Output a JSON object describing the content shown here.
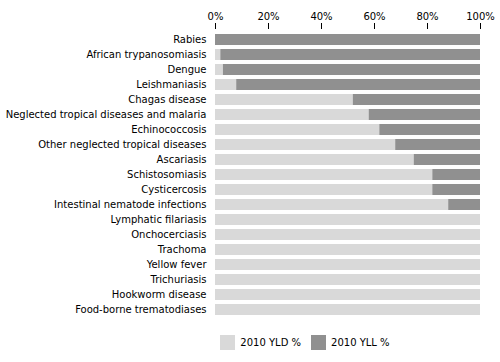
{
  "chart_data": {
    "type": "bar",
    "orientation": "horizontal",
    "stacked": true,
    "categories": [
      "Rabies",
      "African trypanosomiasis",
      "Dengue",
      "Leishmaniasis",
      "Chagas disease",
      "Neglected tropical diseases and malaria",
      "Echinococcosis",
      "Other neglected tropical diseases",
      "Ascariasis",
      "Schistosomiasis",
      "Cysticercosis",
      "Intestinal nematode infections",
      "Lymphatic filariasis",
      "Onchocerciasis",
      "Trachoma",
      "Yellow fever",
      "Trichuriasis",
      "Hookworm disease",
      "Food-borne trematodiases"
    ],
    "series": [
      {
        "name": "2010 YLD %",
        "color": "#d9d9d9",
        "values": [
          0,
          2,
          3,
          8,
          52,
          58,
          62,
          68,
          75,
          82,
          82,
          88,
          100,
          100,
          100,
          100,
          100,
          100,
          100
        ]
      },
      {
        "name": "2010 YLL %",
        "color": "#909090",
        "values": [
          100,
          98,
          97,
          92,
          48,
          42,
          38,
          32,
          25,
          18,
          18,
          12,
          0,
          0,
          0,
          0,
          0,
          0,
          0
        ]
      }
    ],
    "xlim": [
      0,
      100
    ],
    "xticks": [
      {
        "value": 0,
        "label": "0%"
      },
      {
        "value": 20,
        "label": "20%"
      },
      {
        "value": 40,
        "label": "40%"
      },
      {
        "value": 60,
        "label": "60%"
      },
      {
        "value": 80,
        "label": "80%"
      },
      {
        "value": 100,
        "label": "100%"
      }
    ],
    "grid": false,
    "legend": "bottom"
  }
}
